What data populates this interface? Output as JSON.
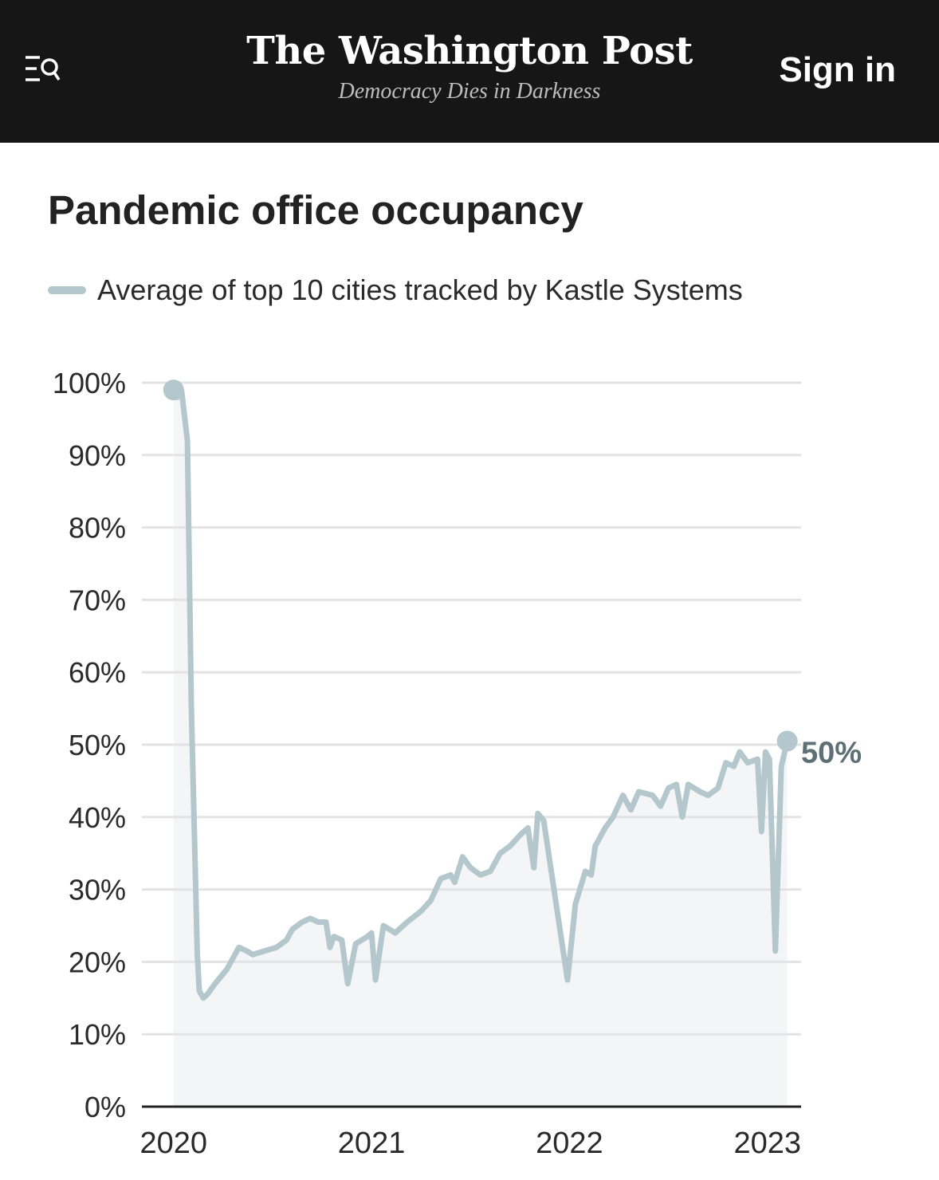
{
  "header": {
    "brand_name": "The Washington Post",
    "tagline": "Democracy Dies in Darkness",
    "sign_in_label": "Sign in",
    "menu_icon": "menu-search-icon",
    "background_color": "#161616"
  },
  "chart_data": {
    "type": "area",
    "title": "Pandemic office occupancy",
    "series": [
      {
        "name": "Average of top 10 cities tracked by Kastle Systems",
        "color": "#b3c7cc",
        "fill_color": "#f3f5f6",
        "points": [
          [
            2020.0,
            99
          ],
          [
            2020.02,
            98
          ],
          [
            2020.04,
            99
          ],
          [
            2020.07,
            92
          ],
          [
            2020.09,
            55
          ],
          [
            2020.12,
            21
          ],
          [
            2020.13,
            16
          ],
          [
            2020.15,
            15
          ],
          [
            2020.17,
            15.5
          ],
          [
            2020.21,
            17
          ],
          [
            2020.27,
            19
          ],
          [
            2020.33,
            22
          ],
          [
            2020.37,
            21.5
          ],
          [
            2020.4,
            21
          ],
          [
            2020.46,
            21.5
          ],
          [
            2020.52,
            22
          ],
          [
            2020.57,
            23
          ],
          [
            2020.6,
            24.5
          ],
          [
            2020.65,
            25.5
          ],
          [
            2020.69,
            26
          ],
          [
            2020.73,
            25.5
          ],
          [
            2020.77,
            25.5
          ],
          [
            2020.79,
            22
          ],
          [
            2020.81,
            23.5
          ],
          [
            2020.85,
            23
          ],
          [
            2020.88,
            17
          ],
          [
            2020.92,
            22.5
          ],
          [
            2020.95,
            23
          ],
          [
            2020.98,
            23.5
          ],
          [
            2021.0,
            24
          ],
          [
            2021.02,
            17.5
          ],
          [
            2021.06,
            25
          ],
          [
            2021.12,
            24
          ],
          [
            2021.18,
            25.5
          ],
          [
            2021.25,
            27
          ],
          [
            2021.3,
            28.5
          ],
          [
            2021.35,
            31.5
          ],
          [
            2021.4,
            32
          ],
          [
            2021.42,
            31
          ],
          [
            2021.46,
            34.5
          ],
          [
            2021.5,
            33
          ],
          [
            2021.55,
            32
          ],
          [
            2021.6,
            32.5
          ],
          [
            2021.65,
            35
          ],
          [
            2021.7,
            36
          ],
          [
            2021.75,
            37.5
          ],
          [
            2021.79,
            38.5
          ],
          [
            2021.82,
            33
          ],
          [
            2021.84,
            40.5
          ],
          [
            2021.87,
            39.5
          ],
          [
            2021.99,
            17.5
          ],
          [
            2022.03,
            28
          ],
          [
            2022.08,
            32.5
          ],
          [
            2022.11,
            32
          ],
          [
            2022.13,
            36
          ],
          [
            2022.18,
            38.5
          ],
          [
            2022.22,
            40
          ],
          [
            2022.27,
            43
          ],
          [
            2022.31,
            41
          ],
          [
            2022.35,
            43.5
          ],
          [
            2022.42,
            43
          ],
          [
            2022.46,
            41.5
          ],
          [
            2022.5,
            44
          ],
          [
            2022.54,
            44.5
          ],
          [
            2022.57,
            40
          ],
          [
            2022.6,
            44.5
          ],
          [
            2022.66,
            43.5
          ],
          [
            2022.7,
            43
          ],
          [
            2022.75,
            44
          ],
          [
            2022.79,
            47.5
          ],
          [
            2022.83,
            47
          ],
          [
            2022.86,
            49
          ],
          [
            2022.9,
            47.5
          ],
          [
            2022.95,
            48
          ],
          [
            2022.97,
            38
          ],
          [
            2022.99,
            49
          ],
          [
            2023.01,
            48
          ],
          [
            2023.04,
            21.5
          ],
          [
            2023.07,
            47
          ],
          [
            2023.1,
            50.5
          ]
        ]
      }
    ],
    "start_marker": {
      "x": 2020.0,
      "y": 99
    },
    "end_marker": {
      "x": 2023.1,
      "y": 50.5
    },
    "end_label": "50%",
    "x_ticks": [
      {
        "value": 2020,
        "label": "2020"
      },
      {
        "value": 2021,
        "label": "2021"
      },
      {
        "value": 2022,
        "label": "2022"
      },
      {
        "value": 2023,
        "label": "2023"
      }
    ],
    "y_ticks": [
      {
        "value": 0,
        "label": "0%"
      },
      {
        "value": 10,
        "label": "10%"
      },
      {
        "value": 20,
        "label": "20%"
      },
      {
        "value": 30,
        "label": "30%"
      },
      {
        "value": 40,
        "label": "40%"
      },
      {
        "value": 50,
        "label": "50%"
      },
      {
        "value": 60,
        "label": "60%"
      },
      {
        "value": 70,
        "label": "70%"
      },
      {
        "value": 80,
        "label": "80%"
      },
      {
        "value": 90,
        "label": "90%"
      },
      {
        "value": 100,
        "label": "100%"
      }
    ],
    "xlim": [
      2019.84,
      2023.17
    ],
    "ylim": [
      0,
      100
    ],
    "grid": true,
    "legend_position": "top-left",
    "label_color": "#5e6f75"
  }
}
